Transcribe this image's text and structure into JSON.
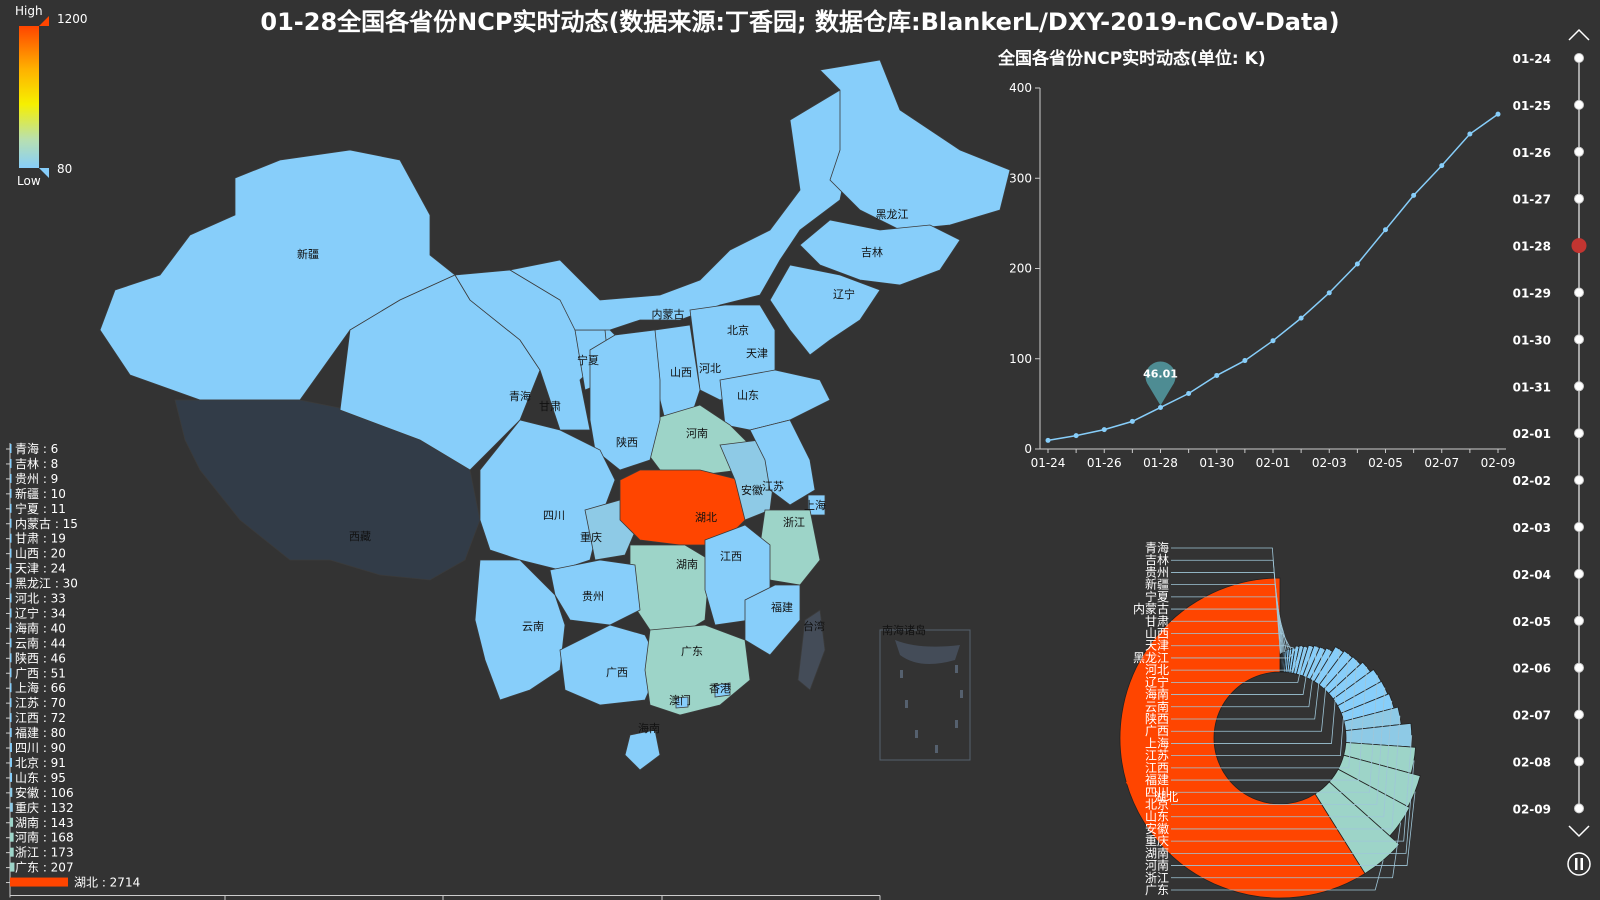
{
  "title": "01-28全国各省份NCP实时动态(数据来源:丁香园; 数据仓库:BlankerL/DXY-2019-nCoV-Data)",
  "colors": {
    "background": "#333333",
    "hubei": "#ff4500",
    "high_group": "#9dd4c8",
    "mid_group": "#8ecae6",
    "low_group": "#87cefa",
    "xizang": "#323c48",
    "line": "#87cefa",
    "timeline_current": "#c23531",
    "marker": "#4e8c93"
  },
  "visual_map": {
    "high_label": "High",
    "low_label": "Low",
    "max": 1200,
    "min": 80
  },
  "map_labels": [
    "新疆",
    "西藏",
    "青海",
    "甘肃",
    "宁夏",
    "内蒙古",
    "黑龙江",
    "吉林",
    "辽宁",
    "北京",
    "天津",
    "河北",
    "山西",
    "山东",
    "河南",
    "陕西",
    "四川",
    "重庆",
    "湖北",
    "安徽",
    "江苏",
    "上海",
    "浙江",
    "湖南",
    "江西",
    "福建",
    "台湾",
    "贵州",
    "云南",
    "广西",
    "广东",
    "香港",
    "澳门",
    "海南",
    "南海诸岛"
  ],
  "chart_data": [
    {
      "type": "bar",
      "orientation": "horizontal",
      "categories": [
        "青海",
        "吉林",
        "贵州",
        "新疆",
        "宁夏",
        "内蒙古",
        "甘肃",
        "山西",
        "天津",
        "黑龙江",
        "河北",
        "辽宁",
        "海南",
        "云南",
        "陕西",
        "广西",
        "上海",
        "江苏",
        "江西",
        "福建",
        "四川",
        "北京",
        "山东",
        "安徽",
        "重庆",
        "湖南",
        "河南",
        "浙江",
        "广东",
        "湖北"
      ],
      "values": [
        6,
        8,
        9,
        10,
        11,
        15,
        19,
        20,
        24,
        30,
        33,
        34,
        40,
        44,
        46,
        51,
        66,
        70,
        72,
        80,
        90,
        91,
        95,
        106,
        132,
        143,
        168,
        173,
        207,
        2714
      ],
      "label_separator": " : "
    },
    {
      "type": "line",
      "title": "全国各省份NCP实时动态(单位: K)",
      "x": [
        "01-24",
        "01-25",
        "01-26",
        "01-27",
        "01-28",
        "01-29",
        "01-30",
        "01-31",
        "02-01",
        "02-02",
        "02-03",
        "02-04",
        "02-05",
        "02-06",
        "02-07",
        "02-08",
        "02-09"
      ],
      "x_tick_labels": [
        "01-24",
        "01-26",
        "01-28",
        "01-30",
        "02-01",
        "02-03",
        "02-05",
        "02-07",
        "02-09"
      ],
      "values": [
        9.6,
        14.8,
        21.5,
        30.6,
        46.01,
        61.5,
        81.5,
        98,
        120,
        145,
        173,
        205,
        243,
        281,
        314,
        349,
        371
      ],
      "ylim": [
        0,
        400
      ],
      "yticks": [
        0,
        100,
        200,
        300,
        400
      ],
      "highlight": {
        "x": "01-28",
        "label": "46.01"
      }
    },
    {
      "type": "pie",
      "style": "rose-donut",
      "labels": [
        "青海",
        "吉林",
        "贵州",
        "新疆",
        "宁夏",
        "内蒙古",
        "甘肃",
        "山西",
        "天津",
        "黑龙江",
        "河北",
        "辽宁",
        "海南",
        "云南",
        "陕西",
        "广西",
        "上海",
        "江苏",
        "江西",
        "福建",
        "四川",
        "北京",
        "山东",
        "安徽",
        "重庆",
        "湖南",
        "河南",
        "浙江",
        "广东",
        "湖北"
      ],
      "values": [
        6,
        8,
        9,
        10,
        11,
        15,
        19,
        20,
        24,
        30,
        33,
        34,
        40,
        44,
        46,
        51,
        66,
        70,
        72,
        80,
        90,
        91,
        95,
        106,
        132,
        143,
        168,
        173,
        207,
        2714
      ]
    }
  ],
  "timeline": {
    "dates": [
      "01-24",
      "01-25",
      "01-26",
      "01-27",
      "01-28",
      "01-29",
      "01-30",
      "01-31",
      "02-01",
      "02-02",
      "02-03",
      "02-04",
      "02-05",
      "02-06",
      "02-07",
      "02-08",
      "02-09"
    ],
    "current": "01-28"
  }
}
